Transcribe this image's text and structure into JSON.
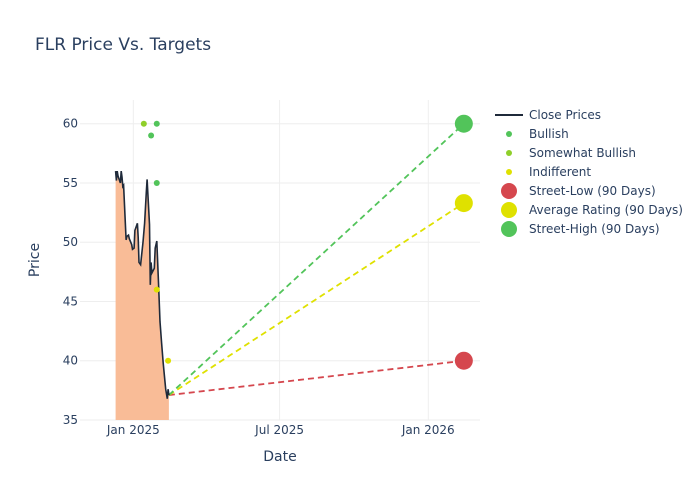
{
  "chart_data": {
    "type": "line",
    "title": "FLR Price Vs. Targets",
    "xlabel": "Date",
    "ylabel": "Price",
    "xlim": [
      "2024-10-27",
      "2026-03-06"
    ],
    "ylim": [
      35,
      62
    ],
    "x_ticks": [
      {
        "date": "2025-01-01",
        "label": "Jan 2025"
      },
      {
        "date": "2025-07-01",
        "label": "Jul 2025"
      },
      {
        "date": "2026-01-01",
        "label": "Jan 2026"
      }
    ],
    "y_ticks": [
      35,
      40,
      45,
      50,
      55,
      60
    ],
    "grid": true,
    "legend_position": "right",
    "close_prices": {
      "name": "Close Prices",
      "color": "#1f2a3a",
      "fill_color": "#f9b891",
      "points": [
        [
          "2024-12-10",
          56.0
        ],
        [
          "2024-12-11",
          55.2
        ],
        [
          "2024-12-12",
          56.0
        ],
        [
          "2024-12-13",
          55.6
        ],
        [
          "2024-12-16",
          55.0
        ],
        [
          "2024-12-17",
          56.0
        ],
        [
          "2024-12-18",
          55.5
        ],
        [
          "2024-12-19",
          54.7
        ],
        [
          "2024-12-20",
          54.8
        ],
        [
          "2024-12-23",
          50.2
        ],
        [
          "2024-12-24",
          50.5
        ],
        [
          "2024-12-26",
          50.6
        ],
        [
          "2024-12-27",
          50.3
        ],
        [
          "2024-12-30",
          49.8
        ],
        [
          "2024-12-31",
          49.4
        ],
        [
          "2025-01-02",
          49.5
        ],
        [
          "2025-01-03",
          51.0
        ],
        [
          "2025-01-06",
          51.6
        ],
        [
          "2025-01-07",
          50.4
        ],
        [
          "2025-01-08",
          48.3
        ],
        [
          "2025-01-10",
          48.1
        ],
        [
          "2025-01-13",
          50.0
        ],
        [
          "2025-01-15",
          51.6
        ],
        [
          "2025-01-17",
          54.2
        ],
        [
          "2025-01-18",
          55.3
        ],
        [
          "2025-01-21",
          51.5
        ],
        [
          "2025-01-22",
          46.4
        ],
        [
          "2025-01-23",
          48.3
        ],
        [
          "2025-01-24",
          47.4
        ],
        [
          "2025-01-27",
          47.8
        ],
        [
          "2025-01-28",
          49.5
        ],
        [
          "2025-01-30",
          50.1
        ],
        [
          "2025-02-01",
          46.8
        ],
        [
          "2025-02-03",
          43.3
        ],
        [
          "2025-02-05",
          41.5
        ],
        [
          "2025-02-07",
          39.8
        ],
        [
          "2025-02-10",
          37.6
        ],
        [
          "2025-02-12",
          36.8
        ],
        [
          "2025-02-13",
          37.6
        ],
        [
          "2025-02-14",
          37.1
        ]
      ]
    },
    "ratings": [
      {
        "name": "Bullish",
        "color": "#52c45a",
        "points": [
          [
            "2025-01-30",
            60
          ],
          [
            "2025-01-23",
            59
          ],
          [
            "2025-01-30",
            55
          ]
        ]
      },
      {
        "name": "Somewhat Bullish",
        "color": "#8fcf2a",
        "points": [
          [
            "2025-01-14",
            60
          ]
        ]
      },
      {
        "name": "Indifferent",
        "color": "#dfe100",
        "points": [
          [
            "2025-01-30",
            46
          ],
          [
            "2025-02-13",
            40
          ]
        ]
      }
    ],
    "targets": {
      "start": {
        "date": "2025-02-14",
        "value": 37.1
      },
      "end_date": "2026-02-14",
      "lines": [
        {
          "name": "Street-Low (90 Days)",
          "value": 40,
          "color": "#d5474e"
        },
        {
          "name": "Average Rating (90 Days)",
          "value": 53.3,
          "color": "#dfe100"
        },
        {
          "name": "Street-High (90 Days)",
          "value": 60,
          "color": "#52c45a"
        }
      ]
    },
    "legend": [
      {
        "label": "Close Prices",
        "symbol": "line",
        "color": "#1f2a3a"
      },
      {
        "label": "Bullish",
        "symbol": "small-dot",
        "color": "#52c45a"
      },
      {
        "label": "Somewhat Bullish",
        "symbol": "small-dot",
        "color": "#8fcf2a"
      },
      {
        "label": "Indifferent",
        "symbol": "small-dot",
        "color": "#dfe100"
      },
      {
        "label": "Street-Low (90 Days)",
        "symbol": "big-dot",
        "color": "#d5474e"
      },
      {
        "label": "Average Rating (90 Days)",
        "symbol": "big-dot",
        "color": "#dfe100"
      },
      {
        "label": "Street-High (90 Days)",
        "symbol": "big-dot",
        "color": "#52c45a"
      }
    ]
  }
}
